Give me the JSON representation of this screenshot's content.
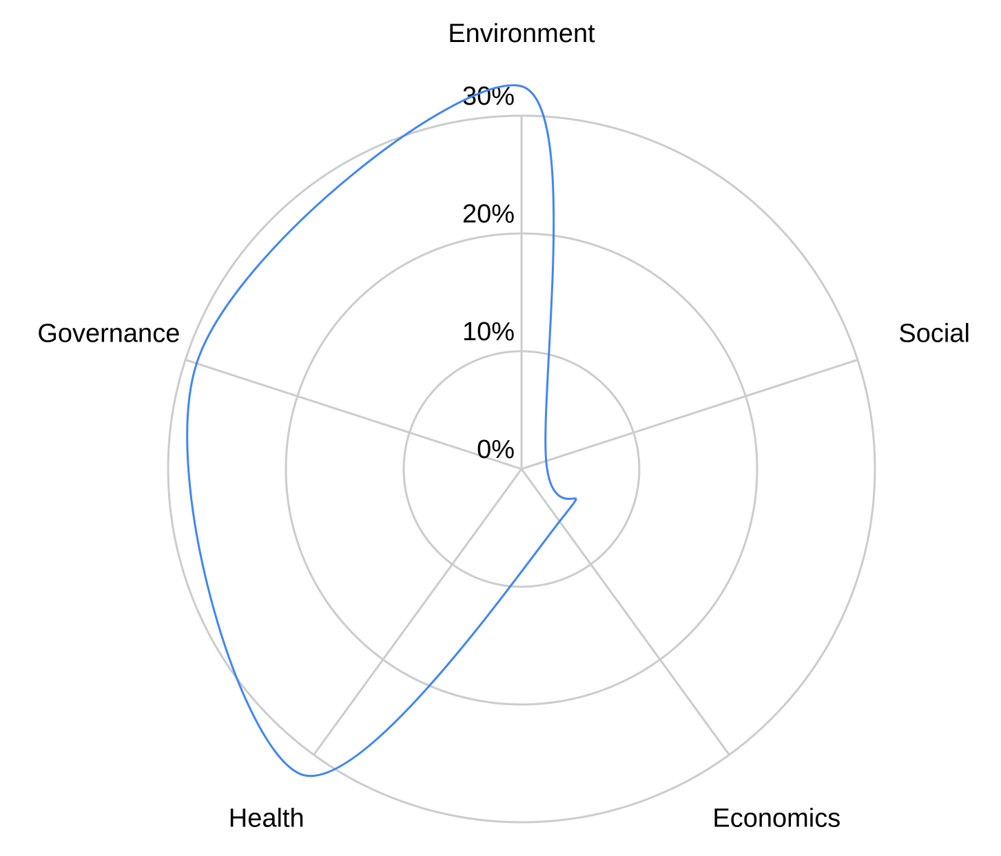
{
  "chart_data": {
    "type": "radar",
    "categories": [
      "Environment",
      "Social",
      "Economics",
      "Health",
      "Governance"
    ],
    "series": [
      {
        "color": "#4285f4",
        "values": [
          32.5,
          2.2,
          5.5,
          32,
          29
        ]
      }
    ],
    "ylim": [
      0,
      30
    ],
    "yticks": [
      {
        "value": 0,
        "label": "0%"
      },
      {
        "value": 10,
        "label": "10%"
      },
      {
        "value": 20,
        "label": "20%"
      },
      {
        "value": 30,
        "label": "30%"
      }
    ],
    "grid": true
  }
}
